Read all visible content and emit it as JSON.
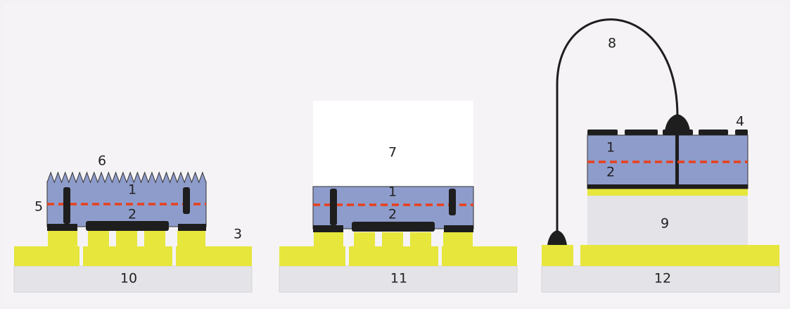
{
  "labels": [
    "6",
    "1",
    "5",
    "2",
    "3",
    "10",
    "7",
    "1",
    "2",
    "11",
    "8",
    "4",
    "1",
    "2",
    "9",
    "12"
  ]
}
